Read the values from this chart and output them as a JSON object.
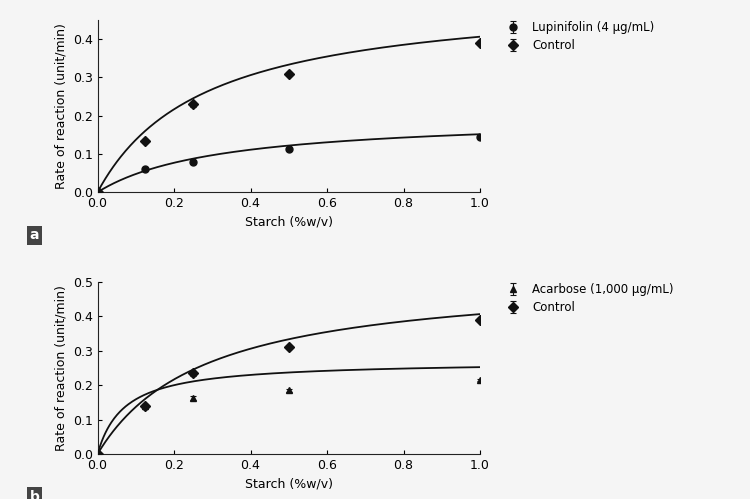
{
  "panel_a": {
    "xlabel": "Starch (%w/v)",
    "ylabel": "Rate of reaction (unit/min)",
    "xlim": [
      0.0,
      1.0
    ],
    "ylim": [
      0.0,
      0.45
    ],
    "yticks": [
      0.0,
      0.1,
      0.2,
      0.3,
      0.4
    ],
    "xticks": [
      0.0,
      0.2,
      0.4,
      0.6,
      0.8,
      1.0
    ],
    "xticklabels": [
      "0.0",
      "0.2",
      "0.4",
      "0.6",
      "0.8",
      "1.0"
    ],
    "control": {
      "x": [
        0.0,
        0.125,
        0.25,
        0.5,
        1.0
      ],
      "y": [
        0.0,
        0.135,
        0.23,
        0.31,
        0.39
      ],
      "yerr": [
        0.0,
        0.004,
        0.007,
        0.004,
        0.004
      ],
      "label": "Control",
      "marker": "D",
      "Vmax": 0.52,
      "Km": 0.28
    },
    "inhibitor": {
      "x": [
        0.0,
        0.125,
        0.25,
        0.5,
        1.0
      ],
      "y": [
        0.0,
        0.06,
        0.078,
        0.113,
        0.145
      ],
      "yerr": [
        0.0,
        0.003,
        0.004,
        0.003,
        0.003
      ],
      "label": "Lupinifolin (4 μg/mL)",
      "marker": "o",
      "Vmax": 0.2,
      "Km": 0.32
    },
    "label": "a"
  },
  "panel_b": {
    "xlabel": "Starch (%w/v)",
    "ylabel": "Rate of reaction (unit/min)",
    "xlim": [
      0.0,
      1.0
    ],
    "ylim": [
      0.0,
      0.5
    ],
    "yticks": [
      0.0,
      0.1,
      0.2,
      0.3,
      0.4,
      0.5
    ],
    "xticks": [
      0.0,
      0.2,
      0.4,
      0.6,
      0.8,
      1.0
    ],
    "xticklabels": [
      "0.0",
      "0.2",
      "0.4",
      "0.6",
      "0.8",
      "1.0"
    ],
    "control": {
      "x": [
        0.0,
        0.125,
        0.25,
        0.5,
        1.0
      ],
      "y": [
        0.0,
        0.14,
        0.235,
        0.31,
        0.39
      ],
      "yerr": [
        0.0,
        0.004,
        0.007,
        0.004,
        0.004
      ],
      "label": "Control",
      "marker": "D",
      "Vmax": 0.52,
      "Km": 0.28
    },
    "inhibitor": {
      "x": [
        0.0,
        0.125,
        0.25,
        0.5,
        1.0
      ],
      "y": [
        0.0,
        0.14,
        0.163,
        0.185,
        0.215
      ],
      "yerr": [
        0.0,
        0.005,
        0.005,
        0.004,
        0.004
      ],
      "label": "Acarbose (1,000 μg/mL)",
      "marker": "^",
      "Vmax": 0.27,
      "Km": 0.07
    },
    "label": "b"
  },
  "line_color": "#111111",
  "marker_color": "#111111",
  "marker_size": 5,
  "line_width": 1.3,
  "font_size": 9,
  "background_color": "#f5f5f5"
}
